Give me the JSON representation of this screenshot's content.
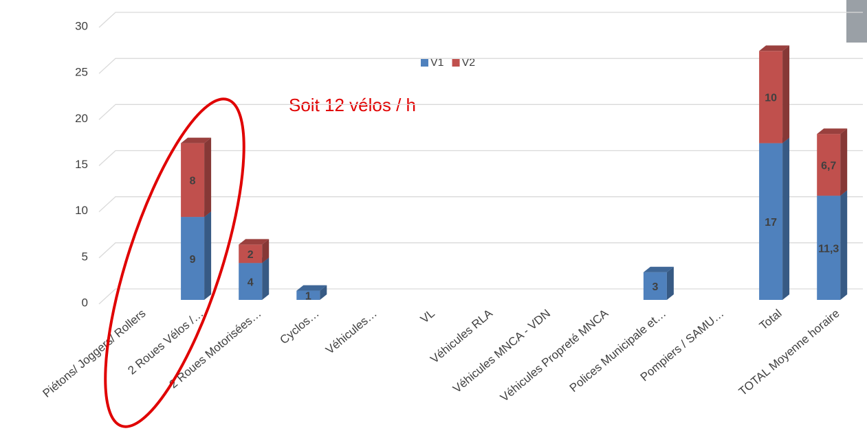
{
  "chart_data": {
    "type": "bar3d_stacked",
    "annotation": "Soit 12 vélos / h",
    "categories": [
      "Piétons/ Joggers/ Rollers",
      "2 Roues  Vélos /…",
      "2 Roues  Motorisées…",
      "Cyclos…",
      "Véhicules…",
      "VL",
      "Véhicules RLA",
      "Véhicules  MNCA - VDN",
      "Véhicules Propreté MNCA",
      "Polices Municipale et…",
      "Pompiers / SAMU…",
      "Total",
      "TOTAL Moyenne horaire"
    ],
    "series": [
      {
        "name": "V1",
        "color": "#4f81bd",
        "values": [
          null,
          9,
          4,
          1,
          null,
          null,
          null,
          null,
          null,
          3,
          null,
          17,
          11.3
        ],
        "value_labels": [
          null,
          "9",
          "4",
          "1",
          null,
          null,
          null,
          null,
          null,
          "3",
          null,
          "17",
          "11,3"
        ]
      },
      {
        "name": "V2",
        "color": "#c0504d",
        "values": [
          null,
          8,
          2,
          null,
          null,
          null,
          null,
          null,
          null,
          null,
          null,
          10,
          6.7
        ],
        "value_labels": [
          null,
          "8",
          "2",
          null,
          null,
          null,
          null,
          null,
          null,
          null,
          null,
          "10",
          "6,7"
        ]
      }
    ],
    "ylim": [
      0,
      30
    ],
    "yticks": [
      0,
      5,
      10,
      15,
      20,
      25,
      30
    ],
    "grid": true,
    "legend": "top"
  }
}
